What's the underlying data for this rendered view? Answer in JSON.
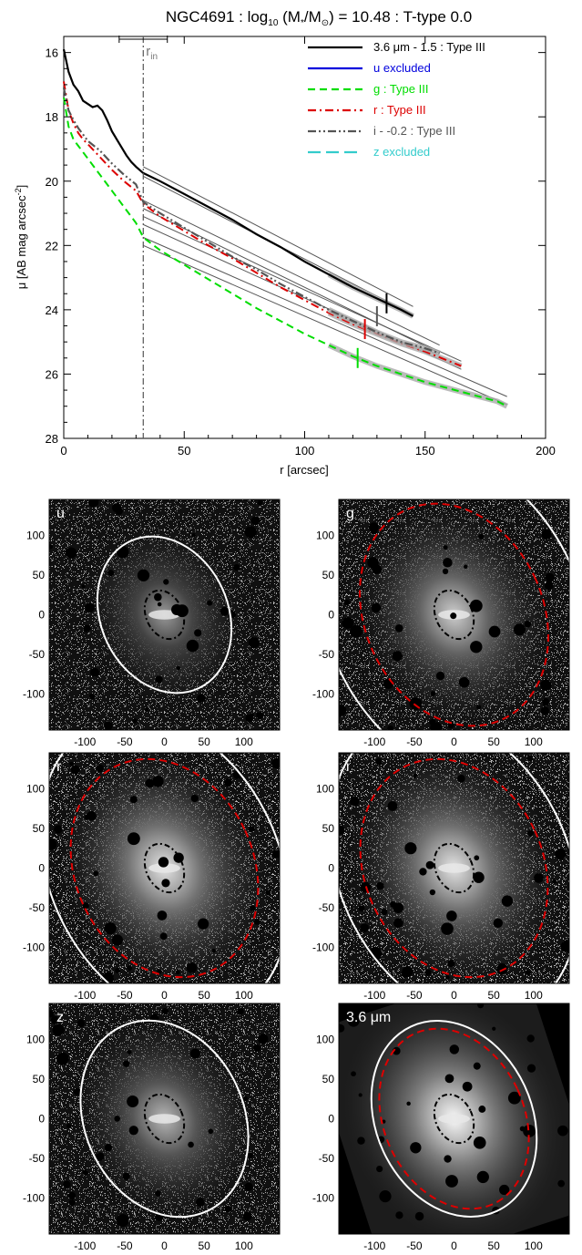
{
  "chart_data": [
    {
      "type": "line",
      "title": "NGC4691 : log10 (M*/M⊙) = 10.48 : T-type 0.0",
      "title_parts": {
        "pre": "NGC4691 : log",
        "sub": "10",
        "mid": " (M",
        "star": "*",
        "slash": "/M",
        "sun": "⊙",
        "post": ") = 10.48 : T-type 0.0"
      },
      "xlabel": "r [arcsec]",
      "ylabel": "μ [AB mag arcsec",
      "ylabel_sup": "-2",
      "ylabel_end": "]",
      "xlim": [
        0,
        200
      ],
      "ylim": [
        28,
        15.5
      ],
      "x_ticks": [
        "0",
        "50",
        "100",
        "150",
        "200"
      ],
      "y_ticks": [
        "16",
        "18",
        "20",
        "22",
        "24",
        "26",
        "28"
      ],
      "rin_label": "r",
      "rin_sub": "in",
      "rin_value": 33,
      "rin_range": [
        23,
        43
      ],
      "legend": [
        {
          "label": "3.6 μm - 1.5 : Type III",
          "color": "#000000",
          "style": "solid"
        },
        {
          "label": "u excluded",
          "color": "#0000dd",
          "style": "solid"
        },
        {
          "label": "g : Type III",
          "color": "#00dd00",
          "style": "dash"
        },
        {
          "label": "r : Type III",
          "color": "#dd0000",
          "style": "dashdot"
        },
        {
          "label": "i - -0.2 : Type III",
          "color": "#555555",
          "style": "dashdotdot"
        },
        {
          "label": "z excluded",
          "color": "#33cccc",
          "style": "longdash"
        }
      ],
      "series": [
        {
          "key": "ch1",
          "color": "#000000",
          "style": "solid",
          "width": 2.2,
          "x": [
            0,
            2,
            4,
            6,
            8,
            10,
            12,
            14,
            16,
            18,
            20,
            22,
            24,
            26,
            28,
            30,
            33,
            40,
            50,
            60,
            70,
            80,
            90,
            100,
            110,
            120,
            130,
            140,
            145
          ],
          "y": [
            15.9,
            16.6,
            17.0,
            17.2,
            17.5,
            17.6,
            17.7,
            17.65,
            17.8,
            18.1,
            18.45,
            18.7,
            18.95,
            19.2,
            19.4,
            19.55,
            19.75,
            20.0,
            20.4,
            20.8,
            21.2,
            21.65,
            22.05,
            22.5,
            22.9,
            23.3,
            23.65,
            24.0,
            24.2
          ],
          "break_x": 134,
          "break_y": 23.8
        },
        {
          "key": "g",
          "color": "#00dd00",
          "style": "dash",
          "width": 2.0,
          "x": [
            0,
            2,
            4,
            6,
            8,
            10,
            15,
            20,
            25,
            30,
            33,
            40,
            50,
            60,
            70,
            80,
            90,
            100,
            110,
            120,
            130,
            140,
            150,
            160,
            170,
            180,
            184
          ],
          "y": [
            17.4,
            18.3,
            18.7,
            18.9,
            19.1,
            19.3,
            19.8,
            20.3,
            20.8,
            21.3,
            21.75,
            22.15,
            22.6,
            23.05,
            23.5,
            23.95,
            24.35,
            24.75,
            25.1,
            25.45,
            25.75,
            26.0,
            26.25,
            26.45,
            26.65,
            26.85,
            27.0
          ],
          "break_x": 122,
          "break_y": 25.5
        },
        {
          "key": "r",
          "color": "#dd0000",
          "style": "dashdot",
          "width": 2.0,
          "x": [
            0,
            2,
            4,
            6,
            8,
            10,
            15,
            20,
            25,
            30,
            33,
            40,
            50,
            60,
            70,
            80,
            90,
            100,
            110,
            120,
            130,
            140,
            150,
            160,
            165
          ],
          "y": [
            16.9,
            17.8,
            18.2,
            18.5,
            18.7,
            18.85,
            19.25,
            19.65,
            20.0,
            20.3,
            20.7,
            21.1,
            21.55,
            22.0,
            22.4,
            22.85,
            23.3,
            23.7,
            24.1,
            24.45,
            24.75,
            25.05,
            25.3,
            25.6,
            25.75
          ],
          "break_x": 125,
          "break_y": 24.6
        },
        {
          "key": "i",
          "color": "#555555",
          "style": "dashdotdot",
          "width": 2.2,
          "x": [
            0,
            2,
            4,
            6,
            8,
            10,
            15,
            20,
            25,
            30,
            33,
            40,
            50,
            60,
            70,
            80,
            90,
            100,
            110,
            120,
            130,
            140,
            150,
            156
          ],
          "y": [
            17.1,
            17.8,
            18.1,
            18.35,
            18.55,
            18.75,
            19.05,
            19.45,
            19.8,
            20.1,
            20.65,
            21.0,
            21.45,
            21.9,
            22.35,
            22.75,
            23.2,
            23.6,
            24.0,
            24.35,
            24.7,
            25.0,
            25.2,
            25.35
          ],
          "break_x": 130,
          "break_y": 24.2
        }
      ],
      "fits": [
        {
          "x1": 33,
          "y1": 19.55,
          "x2": 145,
          "y2": 23.9
        },
        {
          "x1": 33,
          "y1": 19.85,
          "x2": 145,
          "y2": 24.15
        },
        {
          "x1": 33,
          "y1": 20.6,
          "x2": 156,
          "y2": 25.1
        },
        {
          "x1": 33,
          "y1": 20.85,
          "x2": 156,
          "y2": 25.35
        },
        {
          "x1": 33,
          "y1": 21.1,
          "x2": 165,
          "y2": 25.6
        },
        {
          "x1": 33,
          "y1": 21.35,
          "x2": 165,
          "y2": 25.85
        },
        {
          "x1": 33,
          "y1": 21.75,
          "x2": 184,
          "y2": 26.7
        },
        {
          "x1": 33,
          "y1": 22.0,
          "x2": 184,
          "y2": 26.95
        }
      ]
    },
    {
      "type": "image",
      "panels": [
        {
          "label": "u",
          "sharpness": 0.35,
          "noise": 0.38,
          "ellipses": [
            {
              "rx": 80,
              "ry": 102,
              "rot": -25,
              "color": "#ffffff",
              "dash": false
            },
            {
              "rx": 23,
              "ry": 32,
              "rot": -25,
              "color": "#000000",
              "dash": "dashdot"
            }
          ]
        },
        {
          "label": "g",
          "sharpness": 0.7,
          "noise": 0.45,
          "ellipses": [
            {
              "rx": 160,
              "ry": 215,
              "rot": -25,
              "color": "#ffffff",
              "dash": false
            },
            {
              "rx": 112,
              "ry": 145,
              "rot": -25,
              "color": "#dd0000",
              "dash": "dash"
            },
            {
              "rx": 23,
              "ry": 32,
              "rot": -25,
              "color": "#000000",
              "dash": "dashdot"
            }
          ]
        },
        {
          "label": "r",
          "sharpness": 0.85,
          "noise": 0.5,
          "ellipses": [
            {
              "rx": 145,
              "ry": 200,
              "rot": -25,
              "color": "#ffffff",
              "dash": false
            },
            {
              "rx": 112,
              "ry": 142,
              "rot": -25,
              "color": "#dd0000",
              "dash": "dash"
            },
            {
              "rx": 23,
              "ry": 32,
              "rot": -25,
              "color": "#000000",
              "dash": "dashdot"
            }
          ]
        },
        {
          "label": "i",
          "sharpness": 0.85,
          "noise": 0.5,
          "ellipses": [
            {
              "rx": 145,
              "ry": 200,
              "rot": -25,
              "color": "#ffffff",
              "dash": false
            },
            {
              "rx": 112,
              "ry": 142,
              "rot": -25,
              "color": "#dd0000",
              "dash": "dash"
            },
            {
              "rx": 23,
              "ry": 32,
              "rot": -25,
              "color": "#000000",
              "dash": "dashdot"
            }
          ]
        },
        {
          "label": "z",
          "sharpness": 0.55,
          "noise": 0.42,
          "ellipses": [
            {
              "rx": 100,
              "ry": 128,
              "rot": -25,
              "color": "#ffffff",
              "dash": false
            },
            {
              "rx": 23,
              "ry": 32,
              "rot": -25,
              "color": "#000000",
              "dash": "dashdot"
            }
          ]
        },
        {
          "label": "3.6 μm",
          "sharpness": 1.0,
          "noise": 0.15,
          "ellipses": [
            {
              "rx": 98,
              "ry": 128,
              "rot": -25,
              "color": "#ffffff",
              "dash": false
            },
            {
              "rx": 88,
              "ry": 118,
              "rot": -25,
              "color": "#dd0000",
              "dash": "dash"
            },
            {
              "rx": 23,
              "ry": 32,
              "rot": -25,
              "color": "#000000",
              "dash": "dashdot"
            }
          ]
        }
      ],
      "x_ticks": [
        -100,
        -50,
        0,
        50,
        100
      ],
      "y_ticks": [
        100,
        50,
        0,
        -50,
        -100
      ],
      "extent": [
        -145,
        145
      ]
    }
  ]
}
